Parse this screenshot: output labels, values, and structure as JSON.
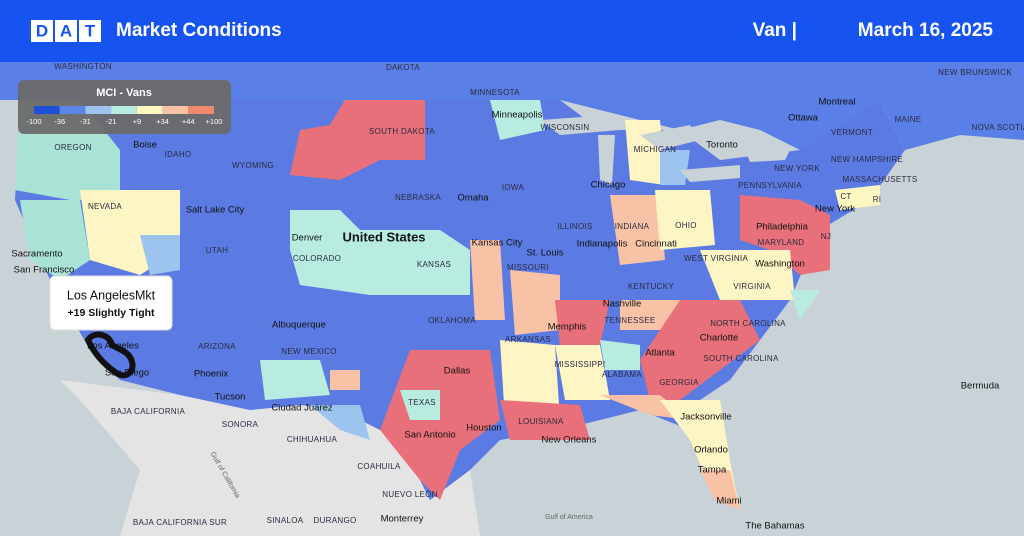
{
  "header": {
    "logo": [
      "D",
      "A",
      "T"
    ],
    "title": "Market Conditions",
    "mode": "Van |",
    "date": "March 16, 2025"
  },
  "legend": {
    "title": "MCI - Vans",
    "labels": [
      "-100",
      "-36",
      "-31",
      "-21",
      "+9",
      "+34",
      "+44",
      "+100"
    ],
    "colors": [
      "#1f4fd6",
      "#5b86e8",
      "#9cc4ee",
      "#b8ece0",
      "#fdf6c0",
      "#f8c2a6",
      "#f08a6c",
      "#d81e32"
    ]
  },
  "tooltip": {
    "market": "Los AngelesMkt",
    "status": "+19 Slightly Tight"
  },
  "places": [
    "WASHINGTON",
    "DAKOTA",
    "MINNESOTA",
    "Minneapolis",
    "WISCONSIN",
    "MICHIGAN",
    "Toronto",
    "Ottawa",
    "Montreal",
    "NEW BRUNSWICK",
    "VERMONT",
    "MAINE",
    "NEW HAMPSHIRE",
    "MASSACHUSETTS",
    "NEW YORK",
    "NOVA SCOTIA",
    "OREGON",
    "Boise",
    "IDAHO",
    "SOUTH DAKOTA",
    "WYOMING",
    "Chicago",
    "IOWA",
    "NEBRASKA",
    "Omaha",
    "Salt Lake City",
    "NEVADA",
    "PENNSYLVANIA",
    "New York",
    "CT",
    "RI",
    "Philadelphia",
    "NJ",
    "MARYLAND",
    "Washington",
    "OHIO",
    "INDIANA",
    "ILLINOIS",
    "Indianapolis",
    "Cincinnati",
    "St. Louis",
    "Kansas City",
    "United States",
    "Denver",
    "COLORADO",
    "UTAH",
    "KANSAS",
    "MISSOURI",
    "WEST VIRGINIA",
    "VIRGINIA",
    "KENTUCKY",
    "Sacramento",
    "San Francisco",
    "Nashville",
    "TENNESSEE",
    "NORTH CAROLINA",
    "Memphis",
    "Charlotte",
    "Albuquerque",
    "OKLAHOMA",
    "ARKANSAS",
    "NEW MEXICO",
    "ARIZONA",
    "Phoenix",
    "SOUTH CAROLINA",
    "Atlanta",
    "MISSISSIPPI",
    "ALABAMA",
    "GEORGIA",
    "Dallas",
    "Tucson",
    "Bermuda",
    "Ciudad Juárez",
    "TEXAS",
    "LOUISIANA",
    "Jacksonville",
    "BAJA CALIFORNIA",
    "SONORA",
    "CHIHUAHUA",
    "Houston",
    "San Antonio",
    "New Orleans",
    "COAHUILA",
    "Orlando",
    "Tampa",
    "Gulf of California",
    "NUEVO LEÓN",
    "Miami",
    "SINALOA",
    "DURANGO",
    "Monterrey",
    "Gulf of America",
    "The Bahamas",
    "BAJA CALIFORNIA SUR",
    "Los Angeles",
    "San Diego"
  ]
}
